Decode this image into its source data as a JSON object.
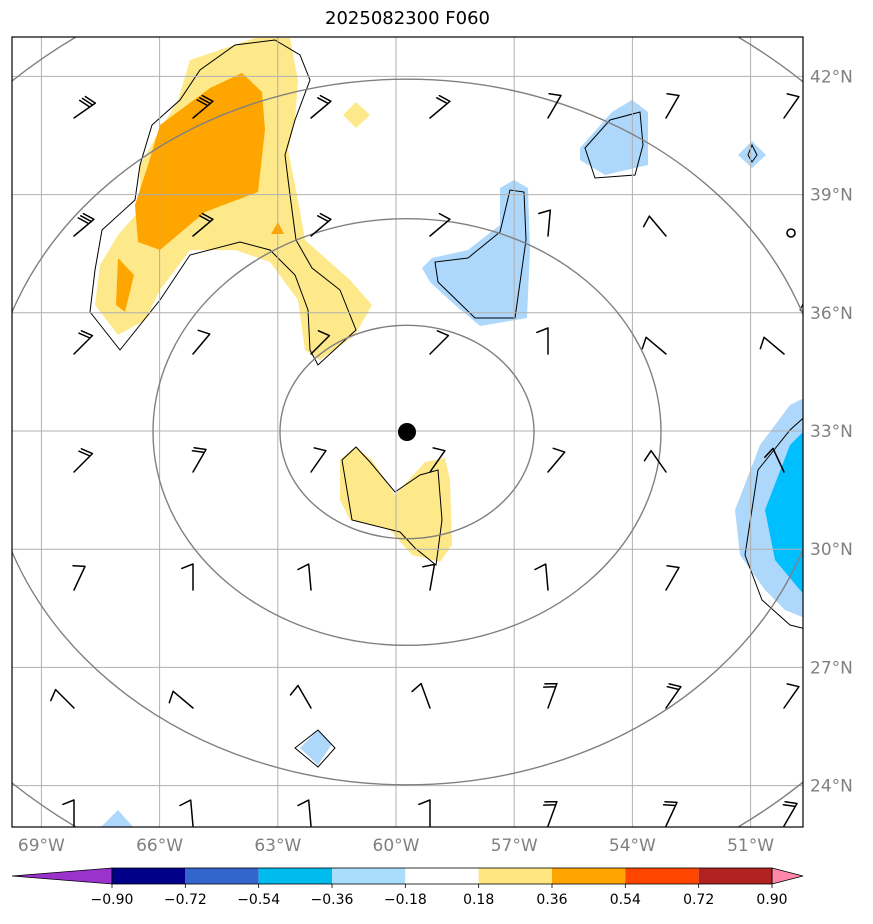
{
  "title": "2025082300 F060",
  "map": {
    "lon_labels": [
      "69°W",
      "66°W",
      "63°W",
      "60°W",
      "57°W",
      "54°W",
      "51°W"
    ],
    "lon_values": [
      -69,
      -66,
      -63,
      -60,
      -57,
      -54,
      -51
    ],
    "lat_labels": [
      "42°N",
      "39°N",
      "36°N",
      "33°N",
      "30°N",
      "27°N",
      "24°N"
    ],
    "lat_values": [
      42,
      39,
      36,
      33,
      30,
      27,
      24
    ],
    "extent": {
      "lon_min": -69.7,
      "lon_max": -49.6,
      "lat_min": 23.0,
      "lat_max": 42.9
    },
    "center_marker": {
      "lon": -59.75,
      "lat": 32.95
    },
    "range_rings_deg": [
      2.6,
      5.4,
      9.2,
      13.0
    ],
    "colors": {
      "grid": "#b0b0b0",
      "rings": "#808080",
      "positive_light": "#fde98a",
      "positive_mid": "#ffa500",
      "negative_light": "#add8fb",
      "negative_mid": "#00bfff"
    }
  },
  "colorbar": {
    "ticks": [
      "−0.90",
      "−0.72",
      "−0.54",
      "−0.36",
      "−0.18",
      "0.18",
      "0.36",
      "0.54",
      "0.72",
      "0.90"
    ],
    "colors": [
      "#9933cc",
      "#000088",
      "#3366cc",
      "#00bbee",
      "#aaddfb",
      "#ffffff",
      "#ffe680",
      "#ffa500",
      "#ff4500",
      "#b22222",
      "#ff88aa"
    ]
  }
}
